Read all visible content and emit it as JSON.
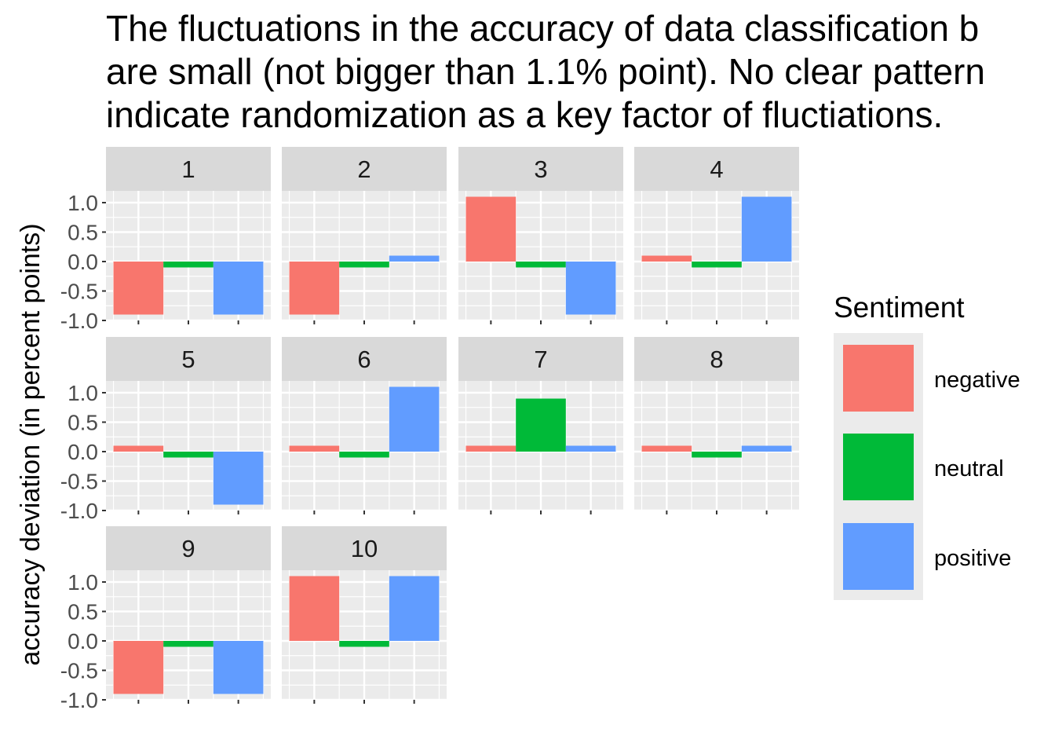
{
  "chart_data": {
    "type": "bar",
    "title_lines": [
      "The fluctuations in the accuracy of data classification b",
      "are small (not bigger than 1.1% point). No clear pattern",
      "indicate randomization as a key factor of fluctiations."
    ],
    "ylabel": "accuracy deviation (in percent points)",
    "xlabel": "",
    "ylim": [
      -1.0,
      1.2
    ],
    "yticks": [
      {
        "v": 1.0,
        "label": "1.0"
      },
      {
        "v": 0.5,
        "label": "0.5"
      },
      {
        "v": 0.0,
        "label": "0.0"
      },
      {
        "v": -0.5,
        "label": "-0.5"
      },
      {
        "v": -1.0,
        "label": "-1.0"
      }
    ],
    "grid": true,
    "legend_position": "right",
    "legend": {
      "title": "Sentiment",
      "items": [
        {
          "label": "negative",
          "color": "#F8766D"
        },
        {
          "label": "neutral",
          "color": "#00BA38"
        },
        {
          "label": "positive",
          "color": "#619CFF"
        }
      ]
    },
    "categories": [
      "negative",
      "neutral",
      "positive"
    ],
    "facets": [
      {
        "label": "1",
        "values": [
          -0.9,
          -0.1,
          -0.9
        ]
      },
      {
        "label": "2",
        "values": [
          -0.9,
          -0.1,
          0.1
        ]
      },
      {
        "label": "3",
        "values": [
          1.1,
          -0.1,
          -0.9
        ]
      },
      {
        "label": "4",
        "values": [
          0.1,
          -0.1,
          1.1
        ]
      },
      {
        "label": "5",
        "values": [
          0.1,
          -0.1,
          -0.9
        ]
      },
      {
        "label": "6",
        "values": [
          0.1,
          -0.1,
          1.1
        ]
      },
      {
        "label": "7",
        "values": [
          0.1,
          0.9,
          0.1
        ]
      },
      {
        "label": "8",
        "values": [
          0.1,
          -0.1,
          0.1
        ]
      },
      {
        "label": "9",
        "values": [
          -0.9,
          -0.1,
          -0.9
        ]
      },
      {
        "label": "10",
        "values": [
          1.1,
          -0.1,
          1.1
        ]
      }
    ]
  }
}
